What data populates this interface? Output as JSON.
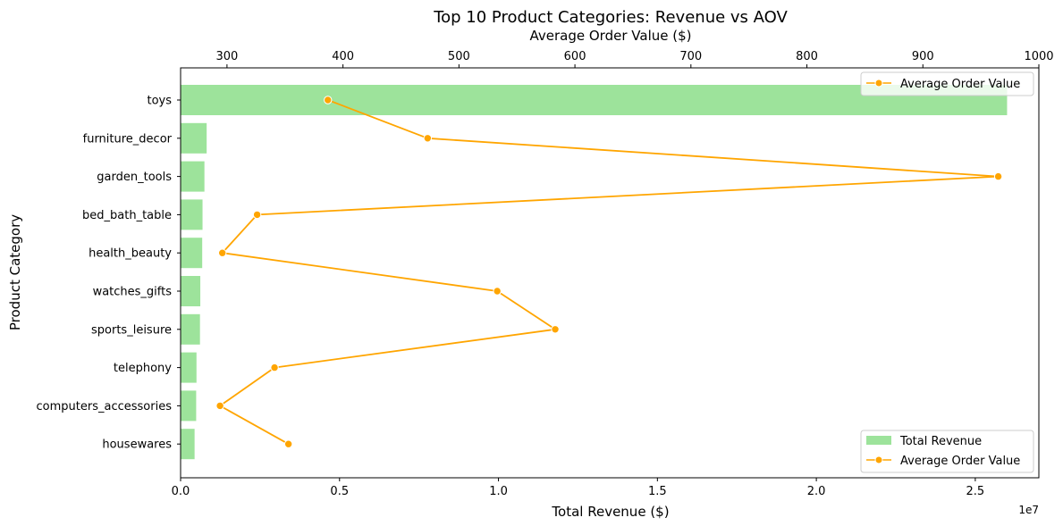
{
  "chart_data": {
    "type": "bar",
    "title": "Top 10 Product Categories: Revenue vs AOV",
    "xlabel": "Total Revenue ($)",
    "x2label": "Average Order Value ($)",
    "ylabel": "Product Category",
    "x_offset_label": "1e7",
    "xlim": [
      0,
      27000000
    ],
    "x2lim": [
      260,
      1000
    ],
    "grid": false,
    "categories": [
      "toys",
      "furniture_decor",
      "garden_tools",
      "bed_bath_table",
      "health_beauty",
      "watches_gifts",
      "sports_leisure",
      "telephony",
      "computers_accessories",
      "housewares"
    ],
    "x_ticks": [
      {
        "value": 0,
        "label": "0.0"
      },
      {
        "value": 5000000,
        "label": "0.5"
      },
      {
        "value": 10000000,
        "label": "1.0"
      },
      {
        "value": 15000000,
        "label": "1.5"
      },
      {
        "value": 20000000,
        "label": "2.0"
      },
      {
        "value": 25000000,
        "label": "2.5"
      }
    ],
    "x2_ticks": [
      {
        "value": 300,
        "label": "300"
      },
      {
        "value": 400,
        "label": "400"
      },
      {
        "value": 500,
        "label": "500"
      },
      {
        "value": 600,
        "label": "600"
      },
      {
        "value": 700,
        "label": "700"
      },
      {
        "value": 800,
        "label": "800"
      },
      {
        "value": 900,
        "label": "900"
      },
      {
        "value": 1000,
        "label": "1000"
      }
    ],
    "series": [
      {
        "name": "Total Revenue",
        "kind": "bar",
        "color": "#9de39b",
        "values": [
          26000000,
          820000,
          750000,
          690000,
          680000,
          620000,
          610000,
          500000,
          490000,
          440000
        ]
      },
      {
        "name": "Average Order Value",
        "kind": "line",
        "axis": "top",
        "color": "#ffa500",
        "values": [
          387,
          473,
          965,
          326,
          296,
          533,
          583,
          341,
          294,
          353
        ]
      }
    ],
    "legends": [
      {
        "placement": "upper-right",
        "entries": [
          "Average Order Value"
        ]
      },
      {
        "placement": "lower-right",
        "entries": [
          "Total Revenue",
          "Average Order Value"
        ]
      }
    ]
  }
}
